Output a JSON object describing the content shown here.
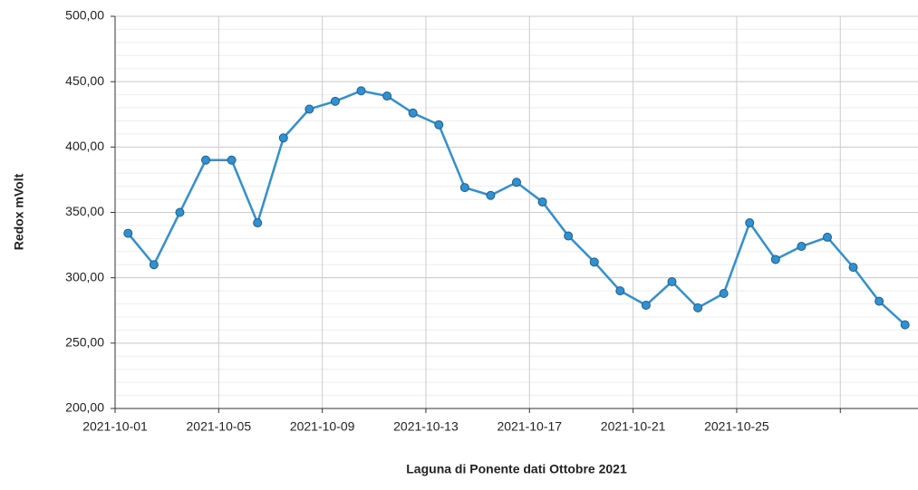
{
  "chart_data": {
    "type": "line",
    "x_label": "Laguna di Ponente dati Ottobre 2021",
    "y_label": "Redox mVolt",
    "x": [
      "2021-10-01",
      "2021-10-02",
      "2021-10-03",
      "2021-10-04",
      "2021-10-05",
      "2021-10-06",
      "2021-10-07",
      "2021-10-08",
      "2021-10-09",
      "2021-10-10",
      "2021-10-11",
      "2021-10-12",
      "2021-10-13",
      "2021-10-14",
      "2021-10-15",
      "2021-10-16",
      "2021-10-17",
      "2021-10-18",
      "2021-10-19",
      "2021-10-20",
      "2021-10-21",
      "2021-10-22",
      "2021-10-23",
      "2021-10-24",
      "2021-10-25",
      "2021-10-26",
      "2021-10-27",
      "2021-10-28",
      "2021-10-29",
      "2021-10-30",
      "2021-10-31"
    ],
    "series": [
      {
        "name": "Redox",
        "color": "#3090d0",
        "values": [
          334,
          310,
          350,
          390,
          390,
          342,
          407,
          429,
          435,
          443,
          439,
          426,
          417,
          369,
          363,
          373,
          358,
          332,
          312,
          290,
          279,
          297,
          277,
          288,
          342,
          314,
          324,
          331,
          308,
          282,
          264
        ]
      }
    ],
    "xlim": [
      "2021-10-01",
      "2021-11-01"
    ],
    "xticks": [
      {
        "value": "2021-10-01",
        "label": "2021-10-01"
      },
      {
        "value": "2021-10-05",
        "label": "2021-10-05"
      },
      {
        "value": "2021-10-09",
        "label": "2021-10-09"
      },
      {
        "value": "2021-10-13",
        "label": "2021-10-13"
      },
      {
        "value": "2021-10-17",
        "label": "2021-10-17"
      },
      {
        "value": "2021-10-21",
        "label": "2021-10-21"
      },
      {
        "value": "2021-10-25",
        "label": "2021-10-25"
      },
      {
        "value": "2021-10-29",
        "label": null
      }
    ],
    "ylim": [
      200,
      500
    ],
    "yticks": [
      {
        "value": 200,
        "label": "200,00"
      },
      {
        "value": 250,
        "label": "250,00"
      },
      {
        "value": 300,
        "label": "300,00"
      },
      {
        "value": 350,
        "label": "350,00"
      },
      {
        "value": 400,
        "label": "400,00"
      },
      {
        "value": 450,
        "label": "450,00"
      },
      {
        "value": 500,
        "label": "500,00"
      }
    ],
    "grid": true
  }
}
